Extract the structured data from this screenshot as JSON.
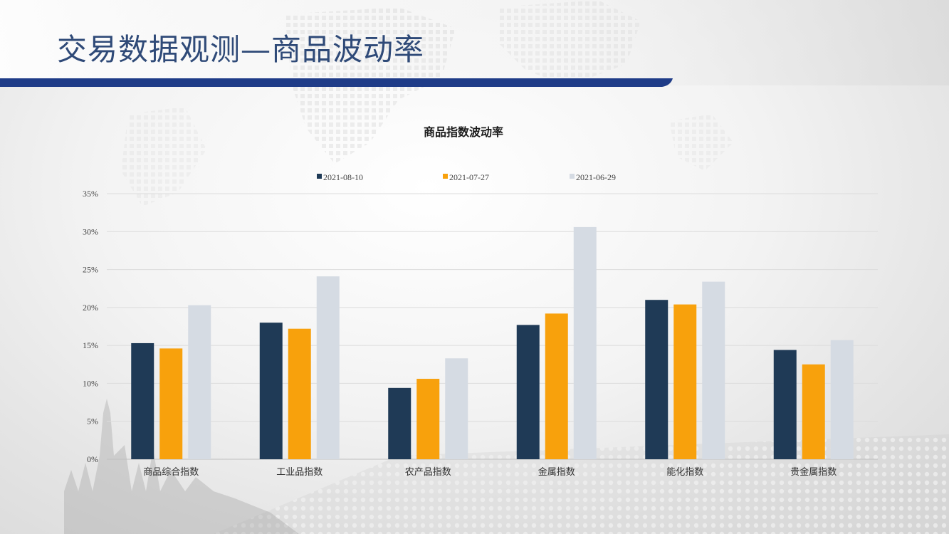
{
  "slide": {
    "title": "交易数据观测—商品波动率",
    "accent_color": "#1f3c88",
    "title_color": "#2f4a78"
  },
  "chart_data": {
    "type": "bar",
    "title": "商品指数波动率",
    "xlabel": "",
    "ylabel": "",
    "categories": [
      "商品综合指数",
      "工业品指数",
      "农产品指数",
      "金属指数",
      "能化指数",
      "贵金属指数"
    ],
    "series": [
      {
        "name": "2021-08-10",
        "color": "#1f3a56",
        "values": [
          15.3,
          18.0,
          9.4,
          17.7,
          21.0,
          14.4
        ]
      },
      {
        "name": "2021-07-27",
        "color": "#f8a10c",
        "values": [
          14.6,
          17.2,
          10.6,
          19.2,
          20.4,
          12.5
        ]
      },
      {
        "name": "2021-06-29",
        "color": "#d5dbe3",
        "values": [
          20.3,
          24.1,
          13.3,
          30.6,
          23.4,
          15.7
        ]
      }
    ],
    "ylim": [
      0,
      35
    ],
    "yticks": [
      0,
      5,
      10,
      15,
      20,
      25,
      30,
      35
    ],
    "ytick_labels": [
      "0%",
      "5%",
      "10%",
      "15%",
      "20%",
      "25%",
      "30%",
      "35%"
    ],
    "grid": true,
    "legend_position": "top"
  }
}
